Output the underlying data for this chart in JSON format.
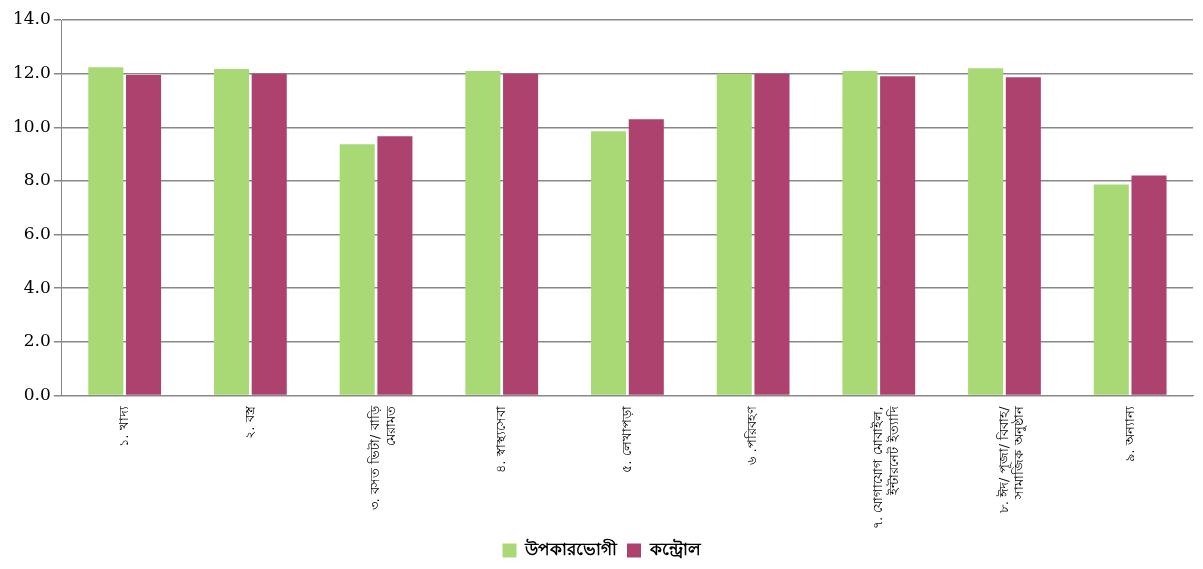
{
  "chart_data": {
    "type": "bar",
    "categories": [
      "১. খাদ্য",
      "২. বস্ত্র",
      "৩. বসত ভিটা/ বাড়ি মেরামত",
      "৪. স্বাস্থ্যসেবা",
      "৫. লেখাপড়া",
      "৬ .পরিবহণ",
      "৭. যোগাযোগ মোবাইল, ইন্টারনেট ইত্যাদি",
      "৮. ঈদ/ পূজা/ বিবাহ/ সামাজিক অনুষ্ঠান",
      "৯. অন্যান্য"
    ],
    "series": [
      {
        "name": "উপকারভোগী",
        "color": "#a9d974",
        "values": [
          12.24,
          12.17,
          9.37,
          12.1,
          9.85,
          12.0,
          12.1,
          12.2,
          7.87
        ]
      },
      {
        "name": "কন্ট্রোল",
        "color": "#ad426e",
        "values": [
          11.95,
          12.0,
          9.67,
          12.0,
          10.3,
          12.0,
          11.9,
          11.87,
          8.2
        ]
      }
    ],
    "ylim": [
      0,
      14
    ],
    "yticks": [
      {
        "value": 0,
        "label": "0.0"
      },
      {
        "value": 2,
        "label": "2.0"
      },
      {
        "value": 4,
        "label": "4.0"
      },
      {
        "value": 6,
        "label": "6.0"
      },
      {
        "value": 8,
        "label": "8.0"
      },
      {
        "value": 10,
        "label": "10.0"
      },
      {
        "value": 12,
        "label": "12.0"
      },
      {
        "value": 14,
        "label": "14.0"
      }
    ],
    "grid": "y",
    "legend": "bottom"
  }
}
